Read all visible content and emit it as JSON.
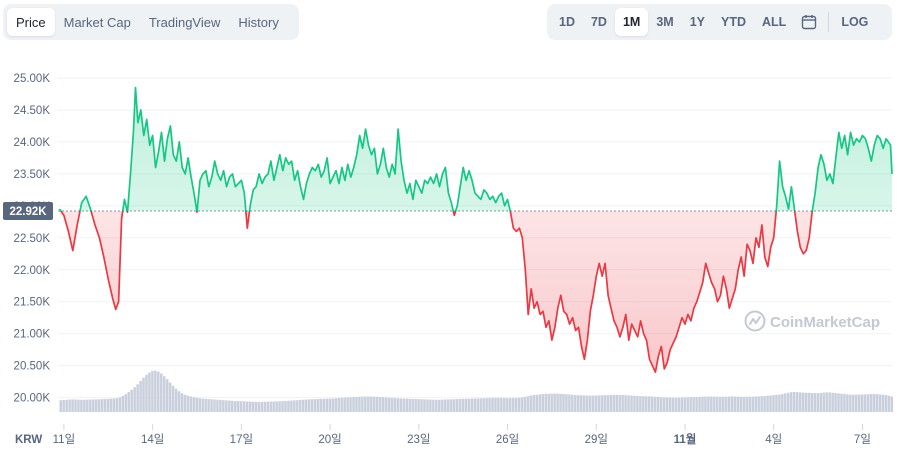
{
  "range_tabs": {
    "left": [
      {
        "label": "Price",
        "active": true
      },
      {
        "label": "Market Cap",
        "active": false
      },
      {
        "label": "TradingView",
        "active": false
      },
      {
        "label": "History",
        "active": false
      }
    ],
    "right": [
      {
        "label": "1D",
        "active": false
      },
      {
        "label": "7D",
        "active": false
      },
      {
        "label": "1M",
        "active": true
      },
      {
        "label": "3M",
        "active": false
      },
      {
        "label": "1Y",
        "active": false
      },
      {
        "label": "YTD",
        "active": false
      },
      {
        "label": "ALL",
        "active": false
      }
    ],
    "log_label": "LOG",
    "calendar_icon": "calendar-icon"
  },
  "watermark": "CoinMarketCap",
  "colors": {
    "up": "#16c784",
    "down": "#ea3943",
    "volume": "#c9cfdc",
    "reference": "#58667e"
  },
  "chart_data": {
    "type": "area",
    "currency": "KRW",
    "reference_value": 22920,
    "reference_label": "22.92K",
    "ylim": [
      19650,
      25250
    ],
    "yticks": [
      {
        "value": 20000,
        "label": "20.00K"
      },
      {
        "value": 20500,
        "label": "20.50K"
      },
      {
        "value": 21000,
        "label": "21.00K"
      },
      {
        "value": 21500,
        "label": "21.50K"
      },
      {
        "value": 22000,
        "label": "22.00K"
      },
      {
        "value": 22500,
        "label": "22.50K"
      },
      {
        "value": 23000,
        "label": "23.00K"
      },
      {
        "value": 23500,
        "label": "23.50K"
      },
      {
        "value": 24000,
        "label": "24.00K"
      },
      {
        "value": 24500,
        "label": "24.50K"
      },
      {
        "value": 25000,
        "label": "25.00K"
      }
    ],
    "xlim": [
      10.8,
      39.0
    ],
    "xticks": [
      {
        "value": 11,
        "label": "11일"
      },
      {
        "value": 14,
        "label": "14일"
      },
      {
        "value": 17,
        "label": "17일"
      },
      {
        "value": 20,
        "label": "20일"
      },
      {
        "value": 23,
        "label": "23일"
      },
      {
        "value": 26,
        "label": "26일"
      },
      {
        "value": 29,
        "label": "29일"
      },
      {
        "value": 32,
        "label": "11월"
      },
      {
        "value": 35,
        "label": "4일"
      },
      {
        "value": 38,
        "label": "7일"
      }
    ],
    "x_note": "x is day of October; 32 = Nov 1",
    "price": [
      [
        10.85,
        22950
      ],
      [
        11.0,
        22850
      ],
      [
        11.15,
        22600
      ],
      [
        11.3,
        22300
      ],
      [
        11.45,
        22700
      ],
      [
        11.6,
        23050
      ],
      [
        11.75,
        23150
      ],
      [
        11.9,
        22950
      ],
      [
        12.05,
        22700
      ],
      [
        12.2,
        22500
      ],
      [
        12.35,
        22200
      ],
      [
        12.5,
        21850
      ],
      [
        12.65,
        21550
      ],
      [
        12.75,
        21380
      ],
      [
        12.85,
        21500
      ],
      [
        12.95,
        22800
      ],
      [
        13.05,
        23100
      ],
      [
        13.15,
        22900
      ],
      [
        13.25,
        23500
      ],
      [
        13.35,
        24150
      ],
      [
        13.42,
        24850
      ],
      [
        13.5,
        24300
      ],
      [
        13.6,
        24500
      ],
      [
        13.7,
        24100
      ],
      [
        13.8,
        24350
      ],
      [
        13.9,
        23950
      ],
      [
        14.0,
        24100
      ],
      [
        14.1,
        23600
      ],
      [
        14.2,
        23850
      ],
      [
        14.3,
        24150
      ],
      [
        14.4,
        23700
      ],
      [
        14.5,
        24050
      ],
      [
        14.6,
        24250
      ],
      [
        14.7,
        23800
      ],
      [
        14.8,
        23700
      ],
      [
        14.9,
        24000
      ],
      [
        15.0,
        23600
      ],
      [
        15.1,
        23500
      ],
      [
        15.2,
        23750
      ],
      [
        15.3,
        23450
      ],
      [
        15.4,
        23200
      ],
      [
        15.5,
        22900
      ],
      [
        15.6,
        23400
      ],
      [
        15.7,
        23500
      ],
      [
        15.8,
        23550
      ],
      [
        15.9,
        23300
      ],
      [
        16.0,
        23450
      ],
      [
        16.1,
        23700
      ],
      [
        16.2,
        23500
      ],
      [
        16.3,
        23400
      ],
      [
        16.4,
        23550
      ],
      [
        16.5,
        23300
      ],
      [
        16.6,
        23450
      ],
      [
        16.7,
        23500
      ],
      [
        16.8,
        23300
      ],
      [
        16.9,
        23350
      ],
      [
        17.0,
        23400
      ],
      [
        17.1,
        23200
      ],
      [
        17.2,
        22650
      ],
      [
        17.3,
        23000
      ],
      [
        17.4,
        23250
      ],
      [
        17.5,
        23300
      ],
      [
        17.6,
        23500
      ],
      [
        17.7,
        23350
      ],
      [
        17.8,
        23450
      ],
      [
        17.9,
        23500
      ],
      [
        18.0,
        23700
      ],
      [
        18.1,
        23400
      ],
      [
        18.2,
        23600
      ],
      [
        18.3,
        23800
      ],
      [
        18.4,
        23550
      ],
      [
        18.5,
        23750
      ],
      [
        18.6,
        23650
      ],
      [
        18.7,
        23700
      ],
      [
        18.8,
        23400
      ],
      [
        18.9,
        23550
      ],
      [
        19.0,
        23300
      ],
      [
        19.1,
        23100
      ],
      [
        19.2,
        23350
      ],
      [
        19.3,
        23500
      ],
      [
        19.4,
        23600
      ],
      [
        19.5,
        23550
      ],
      [
        19.6,
        23650
      ],
      [
        19.7,
        23450
      ],
      [
        19.8,
        23550
      ],
      [
        19.9,
        23750
      ],
      [
        20.0,
        23350
      ],
      [
        20.1,
        23450
      ],
      [
        20.2,
        23550
      ],
      [
        20.3,
        23350
      ],
      [
        20.4,
        23600
      ],
      [
        20.5,
        23400
      ],
      [
        20.6,
        23650
      ],
      [
        20.7,
        23450
      ],
      [
        20.8,
        23600
      ],
      [
        20.9,
        23800
      ],
      [
        21.0,
        24100
      ],
      [
        21.1,
        23900
      ],
      [
        21.2,
        24200
      ],
      [
        21.3,
        23950
      ],
      [
        21.4,
        23800
      ],
      [
        21.5,
        23900
      ],
      [
        21.6,
        23500
      ],
      [
        21.7,
        23650
      ],
      [
        21.8,
        23900
      ],
      [
        21.9,
        23600
      ],
      [
        22.0,
        23450
      ],
      [
        22.1,
        23650
      ],
      [
        22.2,
        23500
      ],
      [
        22.3,
        24200
      ],
      [
        22.4,
        23700
      ],
      [
        22.5,
        23400
      ],
      [
        22.6,
        23200
      ],
      [
        22.7,
        23350
      ],
      [
        22.8,
        23100
      ],
      [
        22.9,
        23400
      ],
      [
        23.0,
        23300
      ],
      [
        23.1,
        23200
      ],
      [
        23.2,
        23400
      ],
      [
        23.3,
        23350
      ],
      [
        23.4,
        23450
      ],
      [
        23.5,
        23350
      ],
      [
        23.6,
        23500
      ],
      [
        23.7,
        23300
      ],
      [
        23.8,
        23500
      ],
      [
        23.9,
        23600
      ],
      [
        24.0,
        23200
      ],
      [
        24.1,
        23050
      ],
      [
        24.2,
        22850
      ],
      [
        24.3,
        23000
      ],
      [
        24.4,
        23300
      ],
      [
        24.5,
        23600
      ],
      [
        24.6,
        23400
      ],
      [
        24.7,
        23550
      ],
      [
        24.8,
        23400
      ],
      [
        24.9,
        23200
      ],
      [
        25.0,
        23150
      ],
      [
        25.1,
        23100
      ],
      [
        25.2,
        23250
      ],
      [
        25.3,
        23200
      ],
      [
        25.4,
        23100
      ],
      [
        25.5,
        23150
      ],
      [
        25.6,
        23050
      ],
      [
        25.7,
        23150
      ],
      [
        25.8,
        23200
      ],
      [
        25.9,
        23000
      ],
      [
        26.0,
        23100
      ],
      [
        26.1,
        22900
      ],
      [
        26.2,
        22650
      ],
      [
        26.3,
        22600
      ],
      [
        26.4,
        22650
      ],
      [
        26.5,
        22500
      ],
      [
        26.6,
        22000
      ],
      [
        26.7,
        21300
      ],
      [
        26.8,
        21700
      ],
      [
        26.9,
        21400
      ],
      [
        27.0,
        21500
      ],
      [
        27.1,
        21300
      ],
      [
        27.2,
        21350
      ],
      [
        27.3,
        21100
      ],
      [
        27.4,
        21200
      ],
      [
        27.5,
        20900
      ],
      [
        27.6,
        21100
      ],
      [
        27.7,
        21400
      ],
      [
        27.8,
        21600
      ],
      [
        27.9,
        21350
      ],
      [
        28.0,
        21300
      ],
      [
        28.1,
        21150
      ],
      [
        28.2,
        21250
      ],
      [
        28.3,
        21050
      ],
      [
        28.4,
        21100
      ],
      [
        28.5,
        20800
      ],
      [
        28.6,
        20600
      ],
      [
        28.7,
        20900
      ],
      [
        28.8,
        21350
      ],
      [
        28.9,
        21600
      ],
      [
        29.0,
        21900
      ],
      [
        29.1,
        22100
      ],
      [
        29.2,
        21900
      ],
      [
        29.3,
        22100
      ],
      [
        29.4,
        21600
      ],
      [
        29.5,
        21400
      ],
      [
        29.6,
        21200
      ],
      [
        29.7,
        21100
      ],
      [
        29.8,
        20950
      ],
      [
        29.9,
        21100
      ],
      [
        30.0,
        21300
      ],
      [
        30.1,
        20900
      ],
      [
        30.2,
        21150
      ],
      [
        30.3,
        21050
      ],
      [
        30.4,
        20950
      ],
      [
        30.5,
        21200
      ],
      [
        30.6,
        21000
      ],
      [
        30.7,
        20900
      ],
      [
        30.8,
        20600
      ],
      [
        30.9,
        20500
      ],
      [
        31.0,
        20400
      ],
      [
        31.1,
        20650
      ],
      [
        31.2,
        20800
      ],
      [
        31.3,
        20450
      ],
      [
        31.4,
        20550
      ],
      [
        31.5,
        20750
      ],
      [
        31.6,
        20850
      ],
      [
        31.7,
        20950
      ],
      [
        31.8,
        21100
      ],
      [
        31.9,
        21250
      ],
      [
        32.0,
        21150
      ],
      [
        32.1,
        21300
      ],
      [
        32.2,
        21200
      ],
      [
        32.3,
        21400
      ],
      [
        32.4,
        21500
      ],
      [
        32.5,
        21650
      ],
      [
        32.6,
        21800
      ],
      [
        32.7,
        22100
      ],
      [
        32.8,
        21950
      ],
      [
        32.9,
        21800
      ],
      [
        33.0,
        21700
      ],
      [
        33.1,
        21500
      ],
      [
        33.2,
        21600
      ],
      [
        33.3,
        21900
      ],
      [
        33.4,
        21700
      ],
      [
        33.5,
        21400
      ],
      [
        33.6,
        21550
      ],
      [
        33.7,
        21700
      ],
      [
        33.8,
        22000
      ],
      [
        33.9,
        22200
      ],
      [
        34.0,
        21900
      ],
      [
        34.1,
        22400
      ],
      [
        34.2,
        22300
      ],
      [
        34.3,
        22100
      ],
      [
        34.4,
        22500
      ],
      [
        34.5,
        22350
      ],
      [
        34.6,
        22700
      ],
      [
        34.7,
        22200
      ],
      [
        34.8,
        22050
      ],
      [
        34.9,
        22350
      ],
      [
        35.0,
        22500
      ],
      [
        35.1,
        23000
      ],
      [
        35.2,
        23700
      ],
      [
        35.3,
        23300
      ],
      [
        35.4,
        23150
      ],
      [
        35.5,
        22950
      ],
      [
        35.6,
        23300
      ],
      [
        35.7,
        22950
      ],
      [
        35.8,
        22600
      ],
      [
        35.9,
        22350
      ],
      [
        36.0,
        22250
      ],
      [
        36.1,
        22300
      ],
      [
        36.2,
        22500
      ],
      [
        36.3,
        22900
      ],
      [
        36.4,
        23200
      ],
      [
        36.5,
        23600
      ],
      [
        36.6,
        23800
      ],
      [
        36.7,
        23650
      ],
      [
        36.8,
        23400
      ],
      [
        36.9,
        23500
      ],
      [
        37.0,
        23350
      ],
      [
        37.1,
        23750
      ],
      [
        37.2,
        24150
      ],
      [
        37.3,
        23900
      ],
      [
        37.4,
        24100
      ],
      [
        37.5,
        23800
      ],
      [
        37.6,
        24150
      ],
      [
        37.7,
        23950
      ],
      [
        37.8,
        24050
      ],
      [
        37.9,
        24000
      ],
      [
        38.0,
        24100
      ],
      [
        38.1,
        24050
      ],
      [
        38.2,
        23900
      ],
      [
        38.3,
        23700
      ],
      [
        38.4,
        23950
      ],
      [
        38.5,
        24100
      ],
      [
        38.6,
        24050
      ],
      [
        38.7,
        23900
      ],
      [
        38.8,
        24050
      ],
      [
        38.95,
        23950
      ],
      [
        39.0,
        23500
      ]
    ],
    "volume": [
      [
        10.85,
        0.28
      ],
      [
        11.2,
        0.3
      ],
      [
        11.6,
        0.29
      ],
      [
        12.0,
        0.3
      ],
      [
        12.4,
        0.31
      ],
      [
        12.8,
        0.33
      ],
      [
        13.0,
        0.4
      ],
      [
        13.2,
        0.5
      ],
      [
        13.4,
        0.62
      ],
      [
        13.6,
        0.78
      ],
      [
        13.8,
        0.92
      ],
      [
        14.0,
        1.0
      ],
      [
        14.2,
        0.95
      ],
      [
        14.4,
        0.82
      ],
      [
        14.6,
        0.66
      ],
      [
        14.8,
        0.52
      ],
      [
        15.0,
        0.42
      ],
      [
        15.3,
        0.36
      ],
      [
        15.6,
        0.32
      ],
      [
        16.0,
        0.3
      ],
      [
        16.4,
        0.28
      ],
      [
        16.8,
        0.26
      ],
      [
        17.2,
        0.25
      ],
      [
        17.6,
        0.24
      ],
      [
        18.0,
        0.25
      ],
      [
        18.4,
        0.26
      ],
      [
        18.8,
        0.28
      ],
      [
        19.2,
        0.3
      ],
      [
        19.6,
        0.31
      ],
      [
        20.0,
        0.32
      ],
      [
        20.4,
        0.34
      ],
      [
        20.8,
        0.36
      ],
      [
        21.2,
        0.37
      ],
      [
        21.6,
        0.36
      ],
      [
        22.0,
        0.34
      ],
      [
        22.4,
        0.32
      ],
      [
        22.8,
        0.31
      ],
      [
        23.2,
        0.3
      ],
      [
        23.6,
        0.29
      ],
      [
        24.0,
        0.3
      ],
      [
        24.4,
        0.31
      ],
      [
        24.8,
        0.32
      ],
      [
        25.2,
        0.33
      ],
      [
        25.6,
        0.34
      ],
      [
        26.0,
        0.33
      ],
      [
        26.4,
        0.34
      ],
      [
        26.8,
        0.4
      ],
      [
        27.2,
        0.43
      ],
      [
        27.6,
        0.44
      ],
      [
        28.0,
        0.42
      ],
      [
        28.4,
        0.4
      ],
      [
        28.8,
        0.39
      ],
      [
        29.2,
        0.4
      ],
      [
        29.6,
        0.41
      ],
      [
        30.0,
        0.4
      ],
      [
        30.4,
        0.38
      ],
      [
        30.8,
        0.37
      ],
      [
        31.2,
        0.35
      ],
      [
        31.6,
        0.34
      ],
      [
        32.0,
        0.35
      ],
      [
        32.4,
        0.36
      ],
      [
        32.8,
        0.37
      ],
      [
        33.2,
        0.36
      ],
      [
        33.6,
        0.37
      ],
      [
        34.0,
        0.36
      ],
      [
        34.4,
        0.37
      ],
      [
        34.8,
        0.39
      ],
      [
        35.2,
        0.42
      ],
      [
        35.6,
        0.48
      ],
      [
        36.0,
        0.46
      ],
      [
        36.4,
        0.45
      ],
      [
        36.8,
        0.47
      ],
      [
        37.2,
        0.44
      ],
      [
        37.6,
        0.41
      ],
      [
        38.0,
        0.42
      ],
      [
        38.4,
        0.43
      ],
      [
        38.8,
        0.4
      ],
      [
        39.0,
        0.36
      ]
    ]
  }
}
